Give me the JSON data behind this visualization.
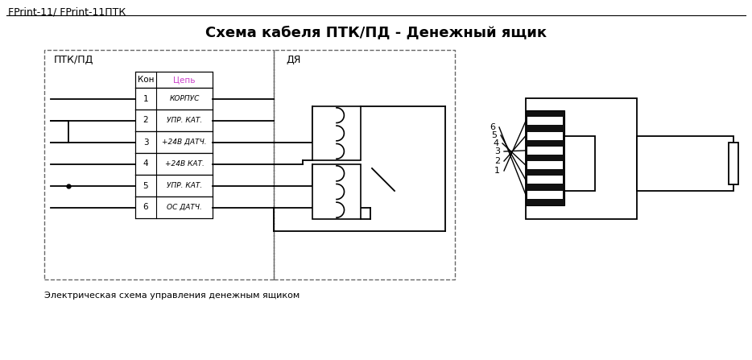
{
  "title": "Схема кабеля ПТК/ПД - Денежный ящик",
  "header": "FPrint-11/ FPrint-11ПТК",
  "footer": "Электрическая схема управления денежным ящиком",
  "left_label": "ПТК/ПД",
  "right_label": "ДЯ",
  "table_header_kon": "Кон",
  "table_header_tsep": "Цепь",
  "table_header_color": "#cc44cc",
  "rows": [
    {
      "num": "1",
      "label": "КОРПУС"
    },
    {
      "num": "2",
      "label": "УПР. КАТ."
    },
    {
      "num": "3",
      "label": "+24В ДАТЧ."
    },
    {
      "num": "4",
      "label": "+24В КАТ."
    },
    {
      "num": "5",
      "label": "УПР. КАТ."
    },
    {
      "num": "6",
      "label": "ОС ДАТЧ."
    }
  ],
  "bg_color": "#ffffff",
  "line_color": "#000000",
  "text_color": "#000000"
}
